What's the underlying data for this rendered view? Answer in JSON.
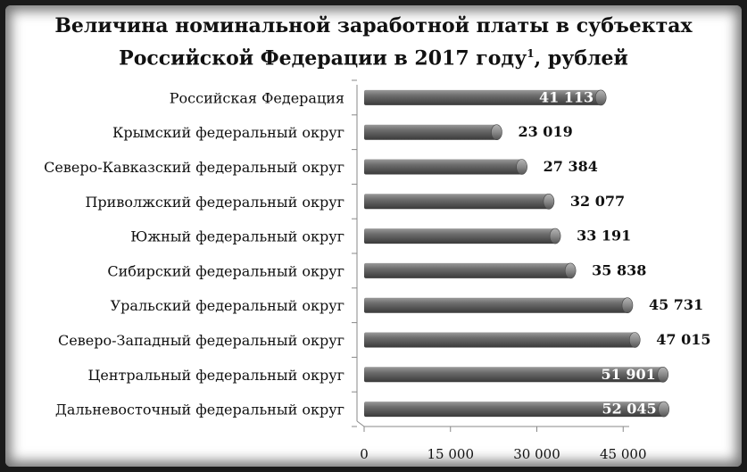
{
  "chart_data": {
    "type": "bar",
    "orientation": "horizontal",
    "title_line1": "Величина номинальной заработной платы в субъектах",
    "title_line2": "Российской Федерации в 2017 году",
    "title_sup": "1",
    "title_suffix": ", рублей",
    "categories": [
      "Российская Федерация",
      "Крымский федеральный округ",
      "Северо-Кавказский федеральный округ",
      "Приволжский федеральный округ",
      "Южный федеральный округ",
      "Сибирский федеральный округ",
      "Уральский федеральный округ",
      "Северо-Западный федеральный округ",
      "Центральный федеральный округ",
      "Дальневосточный федеральный округ"
    ],
    "values": [
      41113,
      23019,
      27384,
      32077,
      33191,
      35838,
      45731,
      47015,
      51901,
      52045
    ],
    "value_labels": [
      "41 113",
      "23 019",
      "27 384",
      "32 077",
      "33 191",
      "35 838",
      "45 731",
      "47 015",
      "51 901",
      "52 045"
    ],
    "label_inside": [
      true,
      false,
      false,
      false,
      false,
      false,
      false,
      false,
      true,
      true
    ],
    "xticks": [
      0,
      15000,
      30000,
      45000
    ],
    "xtick_labels": [
      "0",
      "15 000",
      "30 000",
      "45 000"
    ],
    "xlim": [
      0,
      60000
    ],
    "bar_color": "#666666",
    "grid": false
  }
}
